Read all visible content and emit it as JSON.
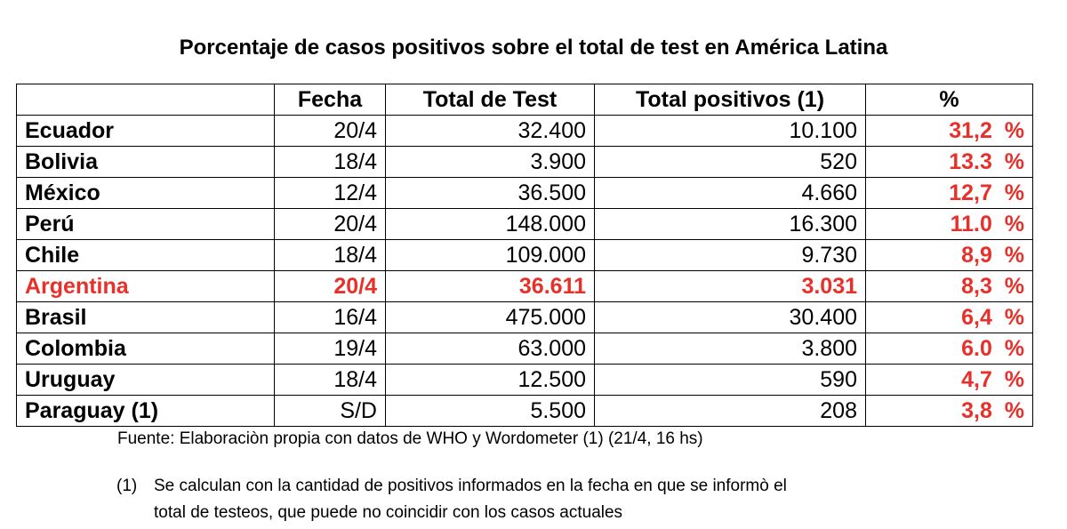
{
  "title": "Porcentaje de casos positivos sobre el total de test en América Latina",
  "headers": [
    "",
    "Fecha",
    "Total de Test",
    "Total positivos (1)",
    "%"
  ],
  "rows": [
    {
      "country": "Ecuador",
      "fecha": "20/4",
      "total_test": "32.400",
      "total_positivos": "10.100",
      "pct": "31,2  %"
    },
    {
      "country": "Bolivia",
      "fecha": "18/4",
      "total_test": "3.900",
      "total_positivos": "520",
      "pct": "13.3  %"
    },
    {
      "country": "México",
      "fecha": "12/4",
      "total_test": "36.500",
      "total_positivos": "4.660",
      "pct": "12,7  %"
    },
    {
      "country": "Perú",
      "fecha": "20/4",
      "total_test": "148.000",
      "total_positivos": "16.300",
      "pct": "11.0  %"
    },
    {
      "country": "Chile",
      "fecha": "18/4",
      "total_test": "109.000",
      "total_positivos": "9.730",
      "pct": "8,9  %"
    },
    {
      "country": "Argentina",
      "fecha": "20/4",
      "total_test": "36.611",
      "total_positivos": "3.031",
      "pct": "8,3  %",
      "highlight": true
    },
    {
      "country": "Brasil",
      "fecha": "16/4",
      "total_test": "475.000",
      "total_positivos": "30.400",
      "pct": "6,4  %"
    },
    {
      "country": "Colombia",
      "fecha": "19/4",
      "total_test": "63.000",
      "total_positivos": "3.800",
      "pct": "6.0  %"
    },
    {
      "country": "Uruguay",
      "fecha": "18/4",
      "total_test": "12.500",
      "total_positivos": "590",
      "pct": "4,7  %"
    },
    {
      "country": "Paraguay (1)",
      "fecha": "S/D",
      "total_test": "5.500",
      "total_positivos": "208",
      "pct": "3,8  %"
    }
  ],
  "source": "Fuente: Elaboraciòn propia con datos de WHO y Wordometer (1) (21/4, 16 hs)",
  "note": {
    "marker": "(1)",
    "line1": "Se calculan con la cantidad de positivos informados en la fecha en que se informò el",
    "line2": "total de testeos, que puede no coincidir con los casos actuales"
  },
  "colors": {
    "highlight": "#e8302a",
    "text": "#000000",
    "background": "#ffffff"
  }
}
